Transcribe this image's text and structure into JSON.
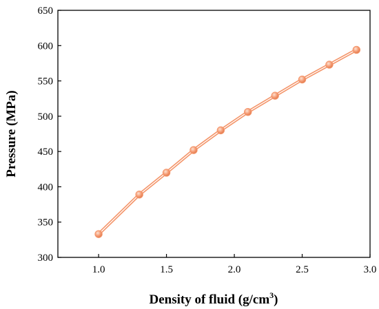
{
  "chart_data": {
    "type": "line",
    "title": "",
    "xlabel_main": "Density of fluid (g/cm",
    "xlabel_sup": "3",
    "xlabel_end": ")",
    "ylabel": "Pressure (MPa)",
    "xlim": [
      0.7,
      3.0
    ],
    "ylim": [
      300,
      650
    ],
    "x_ticks": [
      1.0,
      1.5,
      2.0,
      2.5,
      3.0
    ],
    "x_tick_labels": [
      "1.0",
      "1.5",
      "2.0",
      "2.5",
      "3.0"
    ],
    "y_ticks": [
      300,
      350,
      400,
      450,
      500,
      550,
      600,
      650
    ],
    "y_tick_labels": [
      "300",
      "350",
      "400",
      "450",
      "500",
      "550",
      "600",
      "650"
    ],
    "grid": false,
    "legend": "none",
    "series": [
      {
        "color": "#f4956a",
        "marker": "circle",
        "x": [
          1.0,
          1.3,
          1.5,
          1.7,
          1.9,
          2.1,
          2.3,
          2.5,
          2.7,
          2.9
        ],
        "y": [
          333,
          389,
          420,
          452,
          480,
          506,
          529,
          552,
          573,
          594
        ]
      }
    ]
  }
}
